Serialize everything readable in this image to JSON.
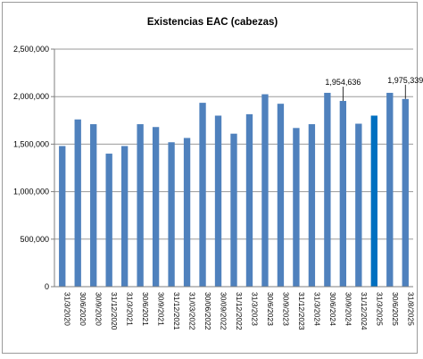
{
  "chart_data": {
    "type": "bar",
    "title": "Existencias EAC (cabezas)",
    "xlabel": "",
    "ylabel": "",
    "ylim": [
      0,
      2500000
    ],
    "y_ticks": [
      0,
      500000,
      1000000,
      1500000,
      2000000,
      2500000
    ],
    "y_tick_labels": [
      "0",
      "500,000",
      "1,000,000",
      "1,500,000",
      "2,000,000",
      "2,500,000"
    ],
    "grid": true,
    "legend": "none",
    "categories": [
      "31/3/2020",
      "30/6/2020",
      "30/9/2020",
      "31/12/2020",
      "31/3/2021",
      "30/6/2021",
      "30/9/2021",
      "31/12/2021",
      "31/03/2022",
      "30/06/2022",
      "30/09/2022",
      "31/12/2022",
      "31/3/2023",
      "30/6/2023",
      "30/9/2023",
      "31/12/2023",
      "31/3/2024",
      "30/6/2024",
      "30/9/2024",
      "31/12/2024",
      "31/3/2025",
      "30/6/2025",
      "31/8/2025"
    ],
    "values": [
      1480000,
      1760000,
      1710000,
      1400000,
      1480000,
      1710000,
      1680000,
      1520000,
      1565000,
      1935000,
      1800000,
      1610000,
      1815000,
      2025000,
      1925000,
      1670000,
      1710000,
      2040000,
      1954636,
      1715000,
      1800000,
      2040000,
      1975339
    ],
    "bar_color": "#4f81bd",
    "highlight_color": "#0070c0",
    "highlight_index": 20,
    "data_labels": [
      {
        "index": 18,
        "text": "1,954,636"
      },
      {
        "index": 22,
        "text": "1,975,339"
      }
    ]
  }
}
